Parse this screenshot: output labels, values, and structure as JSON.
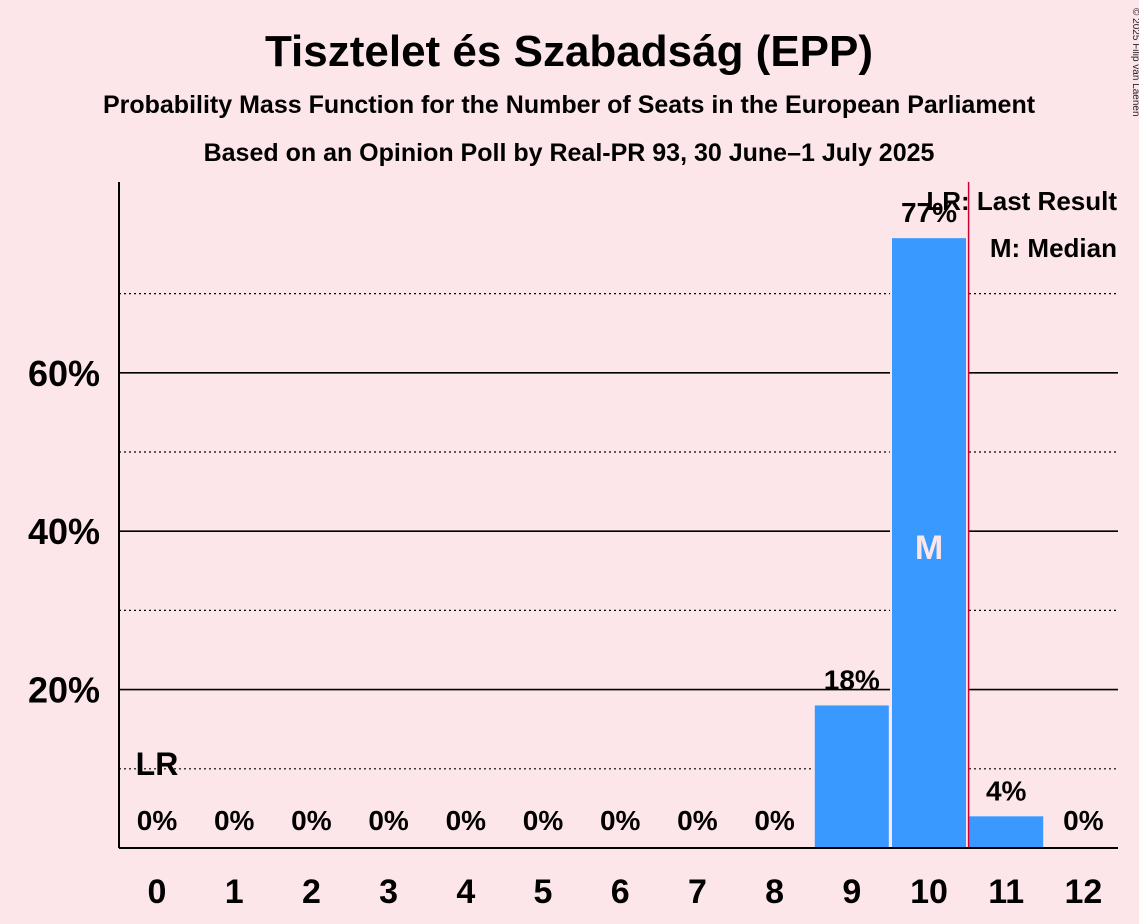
{
  "chart_data": {
    "type": "bar",
    "title": "Tisztelet és Szabadság (EPP)",
    "subtitle": "Probability Mass Function for the Number of Seats in the European Parliament",
    "subtitle2": "Based on an Opinion Poll by Real-PR 93, 30 June–1 July 2025",
    "copyright": "© 2025 Filip van Laenen",
    "categories": [
      "0",
      "1",
      "2",
      "3",
      "4",
      "5",
      "6",
      "7",
      "8",
      "9",
      "10",
      "11",
      "12"
    ],
    "values": [
      0,
      0,
      0,
      0,
      0,
      0,
      0,
      0,
      0,
      18,
      77,
      4,
      0
    ],
    "data_labels": [
      "0%",
      "0%",
      "0%",
      "0%",
      "0%",
      "0%",
      "0%",
      "0%",
      "0%",
      "18%",
      "77%",
      "4%",
      "0%"
    ],
    "yticks": [
      20,
      40,
      60
    ],
    "ytick_labels": [
      "20%",
      "40%",
      "60%"
    ],
    "ylim": [
      0,
      84
    ],
    "minor_gridlines": [
      10,
      30,
      50,
      70
    ],
    "last_result_seat": "0",
    "last_result_label": "LR",
    "median_seat": "10",
    "median_label": "M",
    "legend": [
      "LR: Last Result",
      "M: Median"
    ],
    "legend_position": "top-right",
    "bar_color": "#3A99FF",
    "lr_line_color": "#CC0033",
    "background": "#FDE6EA"
  }
}
